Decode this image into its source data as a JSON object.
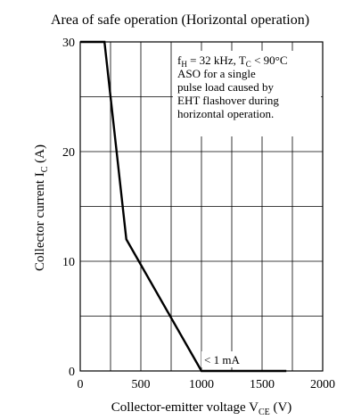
{
  "chart_data": {
    "type": "line",
    "title": "Area of safe operation (Horizontal operation)",
    "xlabel": "Collector-emitter voltage",
    "xlabel_symbol": "V",
    "xlabel_sub": "CE",
    "xlabel_unit": "(V)",
    "ylabel": "Collector current",
    "ylabel_symbol": "I",
    "ylabel_sub": "C",
    "ylabel_unit": "(A)",
    "xlim": [
      0,
      2000
    ],
    "ylim": [
      0,
      30
    ],
    "x_ticks": [
      0,
      500,
      1000,
      1500,
      2000
    ],
    "x_tick_labels": [
      "0",
      "500",
      "1000",
      "1500",
      "2000"
    ],
    "y_ticks": [
      0,
      10,
      20,
      30
    ],
    "y_tick_labels": [
      "0",
      "10",
      "20",
      "30"
    ],
    "grid": true,
    "series": [
      {
        "x": [
          0,
          200,
          380,
          1000,
          1700
        ],
        "y": [
          30,
          30,
          12,
          0,
          0
        ]
      }
    ],
    "annotations": {
      "box_line1": "f",
      "box_line1_sub": "H",
      "box_line1_rest": " = 32 kHz, T",
      "box_line1_sub2": "C",
      "box_line1_end": " < 90°C",
      "box_lines": [
        "ASO for a single",
        "pulse load caused by",
        "EHT flashover during",
        "horizontal operation."
      ],
      "leak_label": "< 1 mA"
    }
  }
}
